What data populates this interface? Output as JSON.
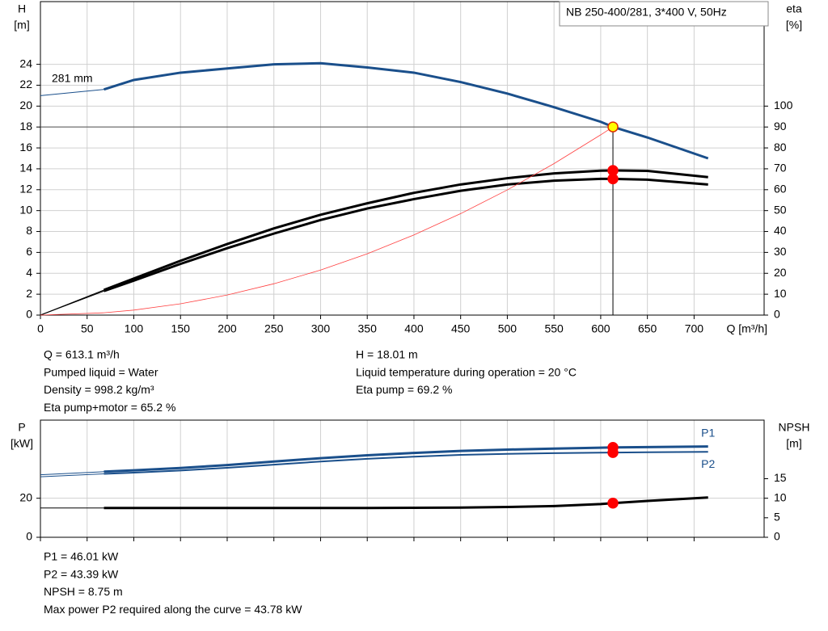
{
  "chart_data": [
    {
      "type": "line",
      "title": "NB 250-400/281, 3*400 V, 50Hz",
      "ylabel": "H",
      "ylabel_unit": "[m]",
      "y2label": "eta",
      "y2label_unit": "[%]",
      "xlabel": "Q [m³/h]",
      "annotation": "281 mm",
      "x": [
        0,
        68,
        100,
        150,
        200,
        250,
        300,
        350,
        400,
        450,
        500,
        550,
        600,
        613.1,
        650,
        715
      ],
      "xlim": [
        0,
        775
      ],
      "xticks": [
        0,
        50,
        100,
        150,
        200,
        250,
        300,
        350,
        400,
        450,
        500,
        550,
        600,
        650,
        700
      ],
      "ylim": [
        0,
        30
      ],
      "yticks": [
        0,
        2,
        4,
        6,
        8,
        10,
        12,
        14,
        16,
        18,
        20,
        22,
        24
      ],
      "y2lim": [
        0,
        150
      ],
      "y2ticks": [
        0,
        10,
        20,
        30,
        40,
        50,
        60,
        70,
        80,
        90,
        100
      ],
      "grid": true,
      "xtick_labels": true,
      "series": [
        {
          "color": "#1a4f8b",
          "width": "thin",
          "values": [
            21.0,
            21.6,
            null,
            null,
            null,
            null,
            null,
            null,
            null,
            null,
            null,
            null,
            null,
            null,
            null,
            null
          ]
        },
        {
          "color": "#1a4f8b",
          "width": "thick",
          "values": [
            null,
            21.6,
            22.5,
            23.2,
            23.6,
            24.0,
            24.1,
            23.7,
            23.2,
            22.3,
            21.2,
            19.9,
            18.5,
            18.01,
            17.0,
            15.0
          ]
        },
        {
          "color": "#000000",
          "width": "thin",
          "axis": "y2",
          "values": [
            0,
            12,
            null,
            null,
            null,
            null,
            null,
            null,
            null,
            null,
            null,
            null,
            null,
            null,
            null,
            null
          ]
        },
        {
          "color": "#000000",
          "width": "thick",
          "axis": "y2",
          "values": [
            null,
            12,
            17.5,
            26,
            34,
            41.5,
            48,
            53.5,
            58.5,
            62.5,
            65.5,
            67.8,
            69.1,
            69.2,
            69.0,
            66.0
          ]
        },
        {
          "color": "#000000",
          "width": "thin",
          "axis": "y2",
          "values": [
            0,
            11.5,
            null,
            null,
            null,
            null,
            null,
            null,
            null,
            null,
            null,
            null,
            null,
            null,
            null,
            null
          ]
        },
        {
          "color": "#000000",
          "width": "thick",
          "axis": "y2",
          "values": [
            null,
            11.5,
            16.5,
            24.5,
            32,
            39,
            45.5,
            51,
            55.5,
            59.5,
            62.5,
            64.3,
            65.2,
            65.2,
            64.8,
            62.5
          ]
        },
        {
          "color": "#ff4040",
          "width": "hair",
          "values": [
            0,
            0.22,
            0.48,
            1.08,
            1.92,
            3.0,
            4.31,
            5.87,
            7.67,
            9.71,
            11.98,
            14.5,
            17.25,
            18.01,
            null,
            null
          ]
        }
      ],
      "points": [
        {
          "x": 613.1,
          "y": 18.01,
          "color": "#ffff00",
          "guides": true
        },
        {
          "x": 613.1,
          "y": 69.2,
          "axis": "y2",
          "color": "#ff0000"
        },
        {
          "x": 613.1,
          "y": 65.2,
          "axis": "y2",
          "color": "#ff0000"
        }
      ]
    },
    {
      "type": "line",
      "ylabel": "P",
      "ylabel_unit": "[kW]",
      "y2label": "NPSH",
      "y2label_unit": "[m]",
      "x": [
        0,
        68,
        100,
        150,
        200,
        250,
        300,
        350,
        400,
        450,
        500,
        550,
        600,
        613.1,
        650,
        715
      ],
      "xlim": [
        0,
        775
      ],
      "xticks": [
        0,
        50,
        100,
        150,
        200,
        250,
        300,
        350,
        400,
        450,
        500,
        550,
        600,
        650,
        700
      ],
      "ylim": [
        0,
        60
      ],
      "yticks": [
        0,
        20
      ],
      "y2lim": [
        0,
        30
      ],
      "y2ticks": [
        0,
        5,
        10,
        15
      ],
      "grid": true,
      "xtick_labels": false,
      "series": [
        {
          "color": "#1a4f8b",
          "width": "thin",
          "values": [
            32.0,
            33.6,
            null,
            null,
            null,
            null,
            null,
            null,
            null,
            null,
            null,
            null,
            null,
            null,
            null,
            null
          ]
        },
        {
          "name": "P1",
          "label_position": "above",
          "color": "#1a4f8b",
          "width": "thick",
          "values": [
            null,
            33.6,
            34.3,
            35.5,
            37.0,
            38.8,
            40.5,
            42.0,
            43.2,
            44.2,
            44.9,
            45.4,
            45.9,
            46.01,
            46.2,
            46.5
          ]
        },
        {
          "color": "#1a4f8b",
          "width": "thin",
          "values": [
            31.0,
            32.5,
            null,
            null,
            null,
            null,
            null,
            null,
            null,
            null,
            null,
            null,
            null,
            null,
            null,
            null
          ]
        },
        {
          "name": "P2",
          "label_position": "below",
          "color": "#1a4f8b",
          "width": "medium",
          "values": [
            null,
            32.5,
            33.1,
            34.2,
            35.6,
            37.2,
            38.8,
            40.2,
            41.3,
            42.2,
            42.7,
            43.1,
            43.35,
            43.39,
            43.55,
            43.78
          ]
        },
        {
          "color": "#000000",
          "width": "thin",
          "axis": "y2",
          "values": [
            7.5,
            7.5,
            null,
            null,
            null,
            null,
            null,
            null,
            null,
            null,
            null,
            null,
            null,
            null,
            null,
            null
          ]
        },
        {
          "color": "#000000",
          "width": "thick",
          "axis": "y2",
          "values": [
            null,
            7.5,
            7.5,
            7.5,
            7.5,
            7.5,
            7.5,
            7.5,
            7.55,
            7.6,
            7.75,
            8.0,
            8.5,
            8.75,
            9.3,
            10.2
          ]
        }
      ],
      "points": [
        {
          "x": 613.1,
          "y": 46.01,
          "color": "#ff0000"
        },
        {
          "x": 613.1,
          "y": 43.39,
          "color": "#ff0000"
        },
        {
          "x": 613.1,
          "y": 8.75,
          "axis": "y2",
          "color": "#ff0000"
        }
      ]
    }
  ],
  "readout": {
    "left": [
      "Q = 613.1 m³/h",
      "Pumped liquid = Water",
      "Density = 998.2 kg/m³",
      "Eta pump+motor = 65.2 %"
    ],
    "right": [
      "H = 18.01 m",
      "Liquid temperature during operation = 20 °C",
      "Eta pump = 69.2 %"
    ],
    "bottom": [
      "P1 = 46.01 kW",
      "P2 = 43.39 kW",
      "NPSH = 8.75 m",
      "Max power P2 required along the curve = 43.78 kW"
    ]
  }
}
